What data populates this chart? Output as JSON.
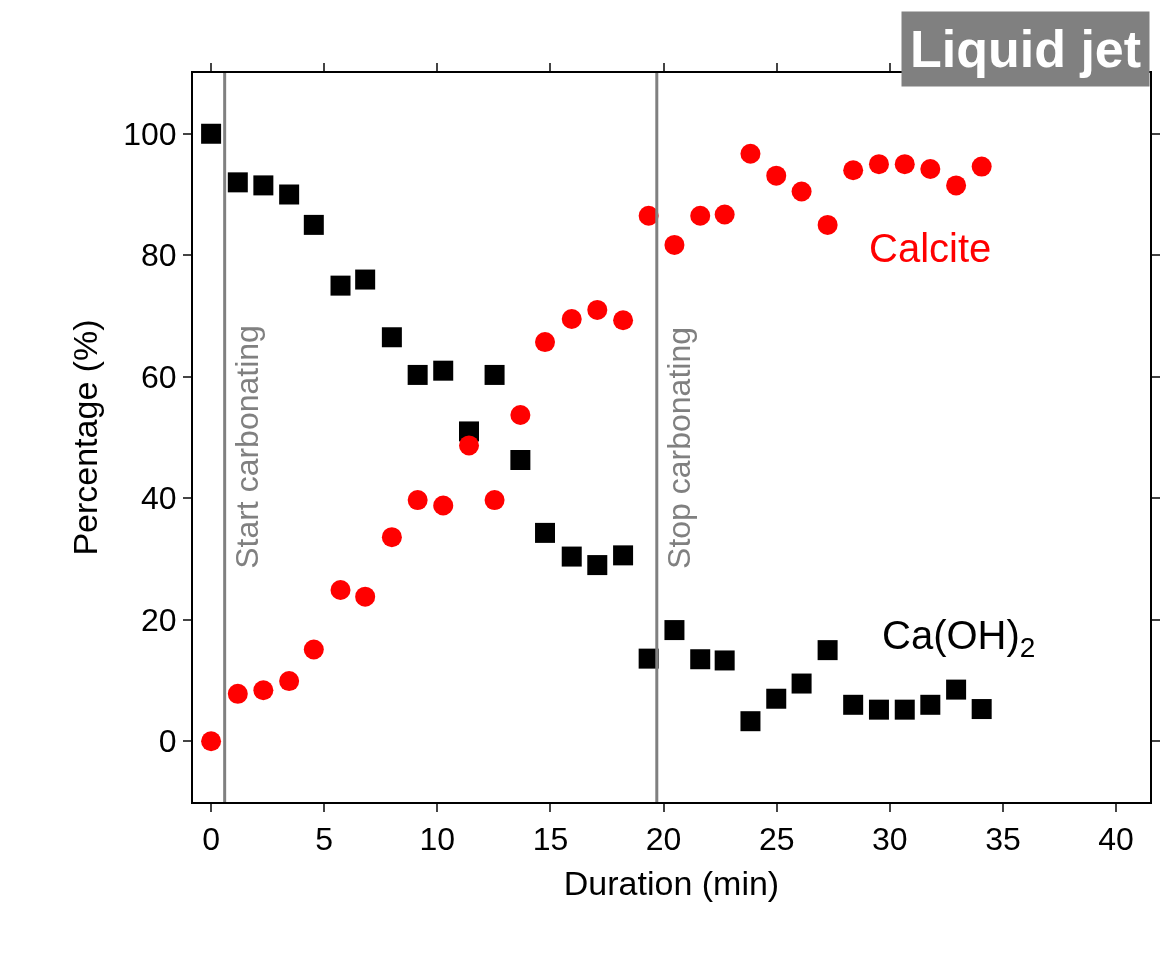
{
  "chart_data": {
    "type": "scatter",
    "title": "Liquid jet",
    "xlabel": "Duration (min)",
    "ylabel": "Percentage (%)",
    "x": [
      0,
      1.18,
      2.31,
      3.45,
      4.54,
      5.72,
      6.81,
      7.99,
      9.13,
      10.26,
      11.4,
      12.53,
      13.67,
      14.76,
      15.94,
      17.07,
      18.21,
      19.34,
      20.48,
      21.62,
      22.7,
      23.84,
      24.98,
      26.1,
      27.25,
      28.38,
      29.52,
      30.66,
      31.79,
      32.93,
      34.06
    ],
    "series": [
      {
        "color": "#000000",
        "marker": "square",
        "values": [
          100,
          92,
          91.5,
          90,
          85,
          75,
          76,
          66.5,
          60.3,
          61,
          51,
          60.3,
          46.3,
          34.3,
          30.4,
          29,
          30.6,
          13.6,
          18.3,
          13.5,
          13.3,
          3.3,
          7,
          9.5,
          15,
          6,
          5.2,
          5.2,
          6,
          8.5,
          5.3
        ]
      },
      {
        "color": "#ff0000",
        "marker": "circle",
        "values": [
          0,
          7.8,
          8.4,
          9.9,
          15.1,
          24.9,
          23.8,
          33.6,
          39.7,
          38.8,
          48.7,
          39.7,
          53.7,
          65.7,
          69.5,
          71,
          69.3,
          86.5,
          81.7,
          86.5,
          86.7,
          96.7,
          93.1,
          90.5,
          85,
          94,
          95,
          95,
          94.2,
          91.5,
          94.6
        ]
      }
    ],
    "annotations": [
      "Calcite",
      "Ca(OH)$_{2}$"
    ],
    "ref_lines": [
      {
        "axis": "x",
        "value": 0.6,
        "label": "Start carbonating",
        "color": "#808080"
      },
      {
        "axis": "x",
        "value": 19.7,
        "label": "Stop carbonating",
        "color": "#808080"
      }
    ],
    "xlim": [
      -0.8,
      41.5
    ],
    "ylim": [
      -10,
      110
    ],
    "xticks": [
      0,
      5,
      10,
      15,
      20,
      25,
      30,
      35,
      40
    ],
    "yticks": [
      0,
      20,
      40,
      60,
      80,
      100
    ]
  }
}
